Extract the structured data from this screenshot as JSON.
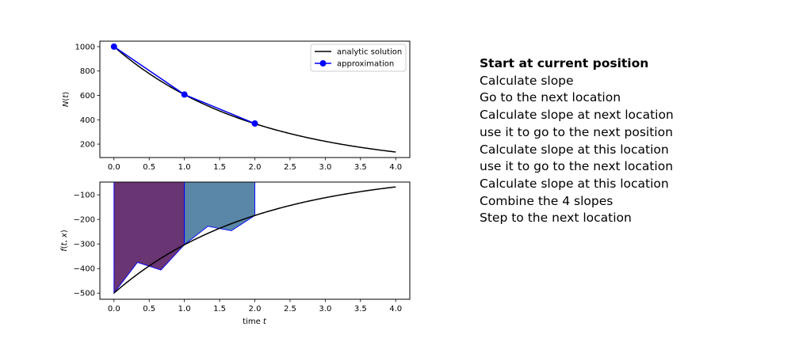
{
  "chart_data": [
    {
      "type": "line",
      "ylabel": "N(t)",
      "xlim": [
        -0.2,
        4.2
      ],
      "ylim": [
        90,
        1045
      ],
      "xticks": [
        "0.0",
        "0.5",
        "1.0",
        "1.5",
        "2.0",
        "2.5",
        "3.0",
        "3.5",
        "4.0"
      ],
      "yticks": [
        "200",
        "400",
        "600",
        "800",
        "1000"
      ],
      "legend": {
        "placement": "top-right",
        "entries": [
          "analytic solution",
          "approximation"
        ]
      },
      "series": [
        {
          "name": "analytic solution",
          "color": "#000000",
          "function": {
            "N0": 1000,
            "rate": 0.5,
            "x_range": [
              0,
              4
            ]
          }
        },
        {
          "name": "approximation",
          "color": "#0000ff",
          "marker": "circle",
          "x": [
            0,
            1,
            2
          ],
          "y": [
            1000,
            607,
            369
          ]
        }
      ]
    },
    {
      "type": "line",
      "xlabel": "time t",
      "ylabel": "f(t, x)",
      "xlim": [
        -0.2,
        4.2
      ],
      "ylim": [
        -525,
        -48
      ],
      "xticks": [
        "0.0",
        "0.5",
        "1.0",
        "1.5",
        "2.0",
        "2.5",
        "3.0",
        "3.5",
        "4.0"
      ],
      "yticks": [
        "−100",
        "−200",
        "−300",
        "−400",
        "−500"
      ],
      "series": [
        {
          "name": "",
          "color": "#000000",
          "function": {
            "N0": 1000,
            "rate": 0.5,
            "x_range": [
              0,
              4
            ],
            "kind": "derivative"
          }
        }
      ],
      "filled_regions": [
        {
          "color": "#6a3573",
          "edge": "#0000ff",
          "x": [
            0,
            0.333,
            0.667,
            1.0
          ],
          "y": [
            -500,
            -375,
            -406,
            -303
          ]
        },
        {
          "color": "#5a87a8",
          "edge": "#0000ff",
          "x": [
            1.0,
            1.333,
            1.667,
            2.0
          ],
          "y": [
            -303,
            -228,
            -246,
            -184
          ]
        }
      ]
    }
  ],
  "text_panel": {
    "steps": [
      "Start at current position",
      "Calculate slope",
      "Go to the next location",
      "Calculate slope at next location",
      "use it to go to the next position",
      "Calculate slope at this location",
      "use it to go to the next location",
      "Calculate slope at this location",
      "Combine the 4 slopes",
      "Step to the next location"
    ]
  }
}
